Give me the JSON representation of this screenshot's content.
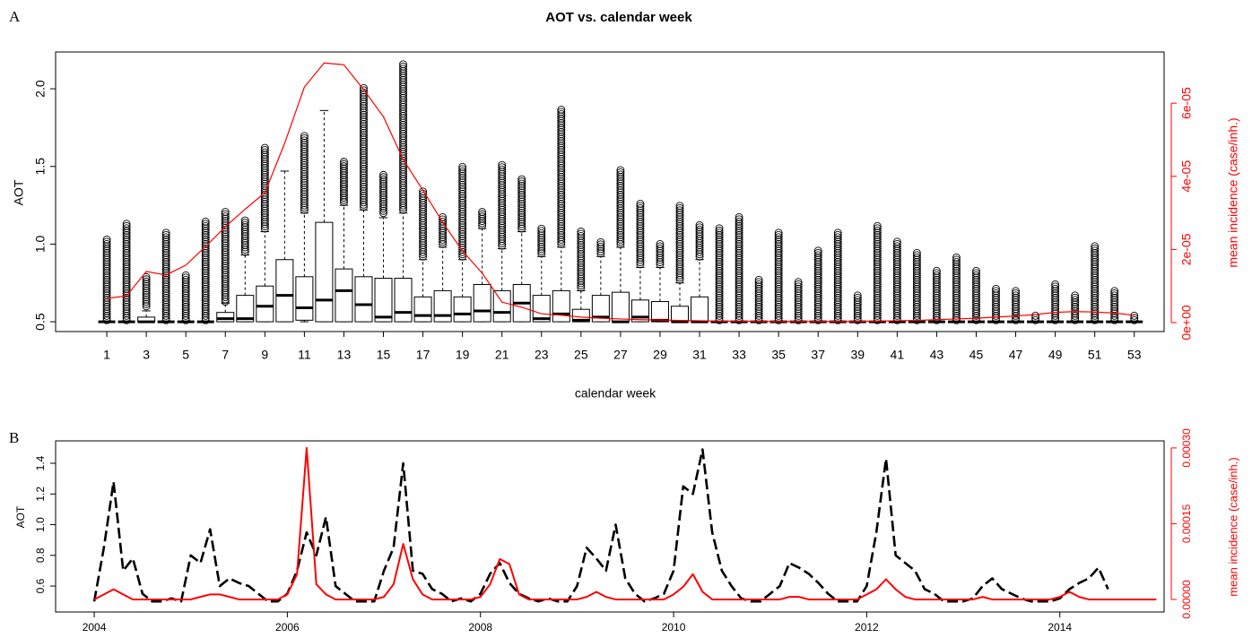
{
  "chart_data": [
    {
      "type": "box",
      "panel_label": "A",
      "title": "AOT vs. calendar week",
      "x_label": "calendar week",
      "y_label": "AOT",
      "y2_label": "mean incidence (case/inh.)",
      "categories": [
        "1",
        null,
        "3",
        null,
        "5",
        null,
        "7",
        null,
        "9",
        null,
        "11",
        null,
        "13",
        null,
        "15",
        null,
        "17",
        null,
        "19",
        null,
        "21",
        null,
        "23",
        null,
        "25",
        null,
        "27",
        null,
        "29",
        null,
        "31",
        null,
        "33",
        null,
        "35",
        null,
        "37",
        null,
        "39",
        null,
        "41",
        null,
        "43",
        null,
        "45",
        null,
        "47",
        null,
        "49",
        null,
        "51",
        null,
        "53"
      ],
      "box_color": "#000000",
      "boxes": {
        "whisker_low": [
          0.5,
          0.5,
          0.5,
          0.5,
          0.5,
          0.5,
          0.5,
          0.5,
          0.5,
          0.5,
          0.5,
          0.5,
          0.5,
          0.5,
          0.5,
          0.5,
          0.5,
          0.5,
          0.5,
          0.5,
          0.5,
          0.5,
          0.5,
          0.5,
          0.5,
          0.5,
          0.5,
          0.5,
          0.5,
          0.5,
          0.5,
          0.5,
          0.5,
          0.5,
          0.5,
          0.5,
          0.5,
          0.5,
          0.5,
          0.5,
          0.5,
          0.5,
          0.5,
          0.5,
          0.5,
          0.5,
          0.5,
          0.5,
          0.5,
          0.5,
          0.5,
          0.5,
          0.5
        ],
        "q1": [
          0.5,
          0.5,
          0.5,
          0.5,
          0.5,
          0.5,
          0.5,
          0.5,
          0.5,
          0.5,
          0.51,
          0.5,
          0.5,
          0.5,
          0.5,
          0.5,
          0.5,
          0.5,
          0.5,
          0.5,
          0.5,
          0.5,
          0.5,
          0.5,
          0.5,
          0.5,
          0.5,
          0.5,
          0.5,
          0.5,
          0.5,
          0.5,
          0.5,
          0.5,
          0.5,
          0.5,
          0.5,
          0.5,
          0.5,
          0.5,
          0.5,
          0.5,
          0.5,
          0.5,
          0.5,
          0.5,
          0.5,
          0.5,
          0.5,
          0.5,
          0.5,
          0.5,
          0.5
        ],
        "median": [
          0.5,
          0.5,
          0.5,
          0.5,
          0.5,
          0.5,
          0.52,
          0.52,
          0.6,
          0.67,
          0.59,
          0.64,
          0.7,
          0.61,
          0.53,
          0.56,
          0.54,
          0.54,
          0.55,
          0.57,
          0.56,
          0.62,
          0.52,
          0.55,
          0.51,
          0.53,
          0.5,
          0.53,
          0.51,
          0.5,
          0.5,
          0.5,
          0.5,
          0.5,
          0.5,
          0.5,
          0.5,
          0.5,
          0.5,
          0.5,
          0.5,
          0.5,
          0.5,
          0.5,
          0.5,
          0.5,
          0.5,
          0.5,
          0.5,
          0.5,
          0.5,
          0.5,
          0.5
        ],
        "q3": [
          0.5,
          0.5,
          0.53,
          0.5,
          0.5,
          0.5,
          0.56,
          0.67,
          0.73,
          0.9,
          0.79,
          1.14,
          0.84,
          0.79,
          0.78,
          0.78,
          0.66,
          0.7,
          0.66,
          0.74,
          0.7,
          0.74,
          0.67,
          0.7,
          0.58,
          0.67,
          0.69,
          0.64,
          0.63,
          0.6,
          0.66,
          0.5,
          0.5,
          0.5,
          0.5,
          0.5,
          0.5,
          0.5,
          0.5,
          0.5,
          0.5,
          0.5,
          0.5,
          0.5,
          0.5,
          0.5,
          0.5,
          0.5,
          0.5,
          0.5,
          0.5,
          0.5,
          0.5
        ],
        "whisker_high": [
          0.5,
          0.5,
          0.57,
          0.5,
          0.5,
          0.5,
          0.62,
          0.93,
          1.08,
          1.47,
          1.2,
          1.86,
          1.25,
          1.22,
          1.17,
          1.2,
          0.9,
          0.98,
          0.9,
          1.1,
          0.97,
          1.08,
          0.92,
          0.98,
          0.7,
          0.92,
          0.98,
          0.85,
          0.85,
          0.75,
          0.9,
          0.5,
          0.5,
          0.5,
          0.5,
          0.5,
          0.5,
          0.5,
          0.5,
          0.5,
          0.5,
          0.5,
          0.5,
          0.5,
          0.5,
          0.5,
          0.5,
          0.5,
          0.5,
          0.5,
          0.5,
          0.5,
          0.5
        ],
        "outlier_low": [
          0.51,
          0.51,
          0.6,
          0.51,
          0.51,
          0.51,
          0.63,
          0.95,
          1.1,
          null,
          1.22,
          null,
          1.27,
          1.24,
          1.2,
          1.22,
          0.92,
          1.0,
          0.92,
          1.12,
          0.99,
          1.1,
          0.94,
          1.0,
          0.72,
          0.94,
          1.0,
          0.87,
          0.87,
          0.77,
          0.92,
          0.51,
          0.51,
          0.51,
          0.51,
          0.51,
          0.51,
          0.51,
          0.51,
          0.51,
          0.51,
          0.51,
          0.51,
          0.51,
          0.51,
          0.51,
          0.51,
          0.51,
          0.51,
          0.51,
          0.51,
          0.51,
          0.51
        ],
        "outlier_high": [
          1.03,
          1.14,
          0.8,
          1.08,
          0.81,
          1.15,
          1.22,
          1.16,
          1.63,
          null,
          1.7,
          null,
          1.54,
          2.01,
          1.45,
          2.16,
          1.35,
          1.18,
          1.5,
          1.22,
          1.52,
          1.42,
          1.1,
          1.87,
          1.09,
          1.02,
          1.49,
          1.26,
          1.01,
          1.26,
          1.13,
          1.11,
          1.18,
          0.77,
          1.08,
          0.76,
          0.97,
          1.08,
          0.68,
          1.13,
          1.02,
          0.95,
          0.83,
          0.92,
          0.83,
          0.72,
          0.71,
          0.54,
          0.75,
          0.67,
          1.0,
          0.71,
          0.54
        ]
      },
      "incidence": {
        "color": "#ff0000",
        "axis": "y2",
        "values": [
          6.6e-06,
          7.3e-06,
          1.4e-05,
          1.3e-05,
          1.57e-05,
          2.08e-05,
          2.62e-05,
          3.1e-05,
          3.55e-05,
          4.9e-05,
          6.44e-05,
          7.1e-05,
          7.05e-05,
          6.37e-05,
          5.63e-05,
          4.46e-05,
          3.62e-05,
          2.74e-05,
          1.96e-05,
          1.35e-05,
          5.6e-06,
          4.2e-06,
          2.4e-06,
          2e-06,
          1.5e-06,
          1.2e-06,
          1e-06,
          8e-07,
          7e-07,
          6e-07,
          5e-07,
          4e-07,
          4e-07,
          3e-07,
          3e-07,
          3e-07,
          3e-07,
          3e-07,
          3e-07,
          4e-07,
          5e-07,
          6e-07,
          8e-07,
          1e-06,
          1.2e-06,
          1.5e-06,
          1.8e-06,
          2.2e-06,
          2.8e-06,
          3e-06,
          2.9e-06,
          2.6e-06,
          2e-06
        ]
      },
      "ylim": [
        0.437,
        2.237
      ],
      "yticks": [
        0.5,
        {
          "value": 1,
          "label": "1.0"
        },
        1.5,
        {
          "value": 2,
          "label": "2.0"
        }
      ],
      "y2lim": [
        -2.45e-06,
        7.4e-05
      ],
      "y2ticks": [
        {
          "value": 0,
          "label": "0e+00"
        },
        {
          "value": 2e-05,
          "label": "2e-05"
        },
        {
          "value": 4e-05,
          "label": "4e-05"
        },
        {
          "value": 6e-05,
          "label": "6e-05"
        }
      ]
    },
    {
      "type": "line",
      "panel_label": "B",
      "y_label": "AOT",
      "y2_label": "mean incidence (case/inh.)",
      "x": [
        2004,
        2004.1,
        2004.2,
        2004.3,
        2004.4,
        2004.5,
        2004.6,
        2004.7,
        2004.8,
        2004.9,
        2005,
        2005.1,
        2005.2,
        2005.3,
        2005.4,
        2005.5,
        2005.6,
        2005.7,
        2005.8,
        2005.9,
        2006,
        2006.1,
        2006.2,
        2006.3,
        2006.4,
        2006.5,
        2006.6,
        2006.7,
        2006.8,
        2006.9,
        2007,
        2007.1,
        2007.2,
        2007.3,
        2007.4,
        2007.5,
        2007.6,
        2007.7,
        2007.8,
        2007.9,
        2008,
        2008.1,
        2008.2,
        2008.3,
        2008.4,
        2008.5,
        2008.6,
        2008.7,
        2008.8,
        2008.9,
        2009,
        2009.1,
        2009.2,
        2009.3,
        2009.4,
        2009.5,
        2009.6,
        2009.7,
        2009.8,
        2009.9,
        2010,
        2010.1,
        2010.2,
        2010.3,
        2010.4,
        2010.5,
        2010.6,
        2010.7,
        2010.8,
        2010.9,
        2011,
        2011.1,
        2011.2,
        2011.3,
        2011.4,
        2011.5,
        2011.6,
        2011.7,
        2011.8,
        2011.9,
        2012,
        2012.1,
        2012.2,
        2012.3,
        2012.4,
        2012.5,
        2012.6,
        2012.7,
        2012.8,
        2012.9,
        2013,
        2013.1,
        2013.2,
        2013.3,
        2013.4,
        2013.5,
        2013.6,
        2013.7,
        2013.8,
        2013.9,
        2014,
        2014.1,
        2014.2,
        2014.3,
        2014.4,
        2014.5,
        2014.6,
        2014.7,
        2014.8,
        2014.9,
        2015
      ],
      "series": [
        {
          "color": "#000000",
          "dash": true,
          "values": [
            0.5,
            0.85,
            1.28,
            0.7,
            0.78,
            0.55,
            0.5,
            0.5,
            0.52,
            0.5,
            0.8,
            0.75,
            0.97,
            0.6,
            0.65,
            0.62,
            0.6,
            0.55,
            0.5,
            0.5,
            0.55,
            0.7,
            0.95,
            0.8,
            1.05,
            0.6,
            0.55,
            0.5,
            0.5,
            0.5,
            0.7,
            0.85,
            1.4,
            0.7,
            0.68,
            0.58,
            0.55,
            0.5,
            0.52,
            0.5,
            0.55,
            0.68,
            0.75,
            0.62,
            0.55,
            0.52,
            0.5,
            0.52,
            0.5,
            0.5,
            0.6,
            0.85,
            0.78,
            0.7,
            1.0,
            0.65,
            0.55,
            0.5,
            0.52,
            0.55,
            0.7,
            1.25,
            1.2,
            1.49,
            0.95,
            0.7,
            0.6,
            0.52,
            0.5,
            0.5,
            0.55,
            0.6,
            0.75,
            0.72,
            0.68,
            0.62,
            0.55,
            0.5,
            0.5,
            0.5,
            0.6,
            0.95,
            1.43,
            0.8,
            0.75,
            0.7,
            0.58,
            0.55,
            0.5,
            0.5,
            0.5,
            0.52,
            0.6,
            0.65,
            0.58,
            0.55,
            0.52,
            0.5,
            0.5,
            0.5,
            0.52,
            0.58,
            0.62,
            0.65,
            0.72,
            0.58,
            null,
            null,
            null,
            null,
            null
          ]
        },
        {
          "color": "#ff0000",
          "axis": "y2",
          "values": [
            0,
            1e-05,
            2e-05,
            1e-05,
            0,
            0,
            0,
            0,
            0,
            0,
            0,
            5e-06,
            1e-05,
            1e-05,
            5e-06,
            0,
            0,
            0,
            0,
            0,
            1e-05,
            5e-05,
            0.0003,
            3e-05,
            1e-05,
            0,
            0,
            0,
            0,
            0,
            5e-06,
            3e-05,
            0.00011,
            4e-05,
            1e-05,
            0,
            0,
            0,
            0,
            0,
            5e-06,
            3e-05,
            8e-05,
            7e-05,
            1e-05,
            0,
            0,
            0,
            0,
            0,
            0,
            5e-06,
            1.5e-05,
            5e-06,
            0,
            0,
            0,
            0,
            0,
            0,
            1e-05,
            2.5e-05,
            5e-05,
            1.5e-05,
            0,
            0,
            0,
            0,
            0,
            0,
            0,
            0,
            5e-06,
            5e-06,
            0,
            0,
            0,
            0,
            0,
            0,
            1e-05,
            2e-05,
            4e-05,
            2e-05,
            5e-06,
            0,
            0,
            0,
            0,
            0,
            0,
            0,
            5e-06,
            0,
            0,
            0,
            0,
            0,
            0,
            0,
            5e-06,
            1.5e-05,
            5e-06,
            0,
            0,
            0,
            0,
            0,
            0,
            0,
            0
          ]
        }
      ],
      "xlim": [
        2003.6,
        2015.08
      ],
      "xticks": [
        2004,
        2006,
        2008,
        2010,
        2012,
        2014
      ],
      "ylim": [
        0.431,
        1.546
      ],
      "yticks": [
        0.6,
        0.8,
        {
          "value": 1,
          "label": "1.0"
        },
        1.2,
        1.4
      ],
      "y2lim": [
        -2.49e-05,
        0.000314
      ],
      "y2ticks": [
        {
          "value": 0,
          "label": "0.00000"
        },
        {
          "value": 0.00015,
          "label": "0.00015"
        },
        {
          "value": 0.0003,
          "label": "0.00030"
        }
      ]
    }
  ]
}
